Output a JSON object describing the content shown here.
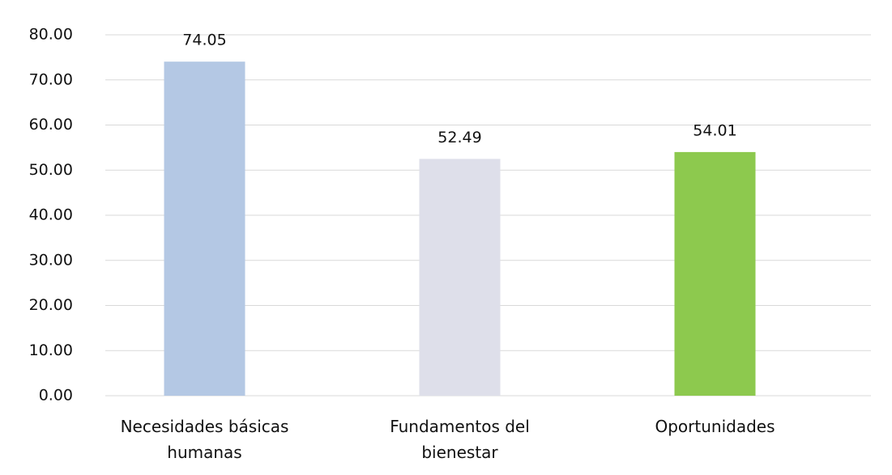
{
  "chart_data": {
    "type": "bar",
    "categories": [
      "Necesidades básicas humanas",
      "Fundamentos del bienestar",
      "Oportunidades"
    ],
    "values": [
      74.05,
      52.49,
      54.01
    ],
    "colors": [
      "#b4c8e4",
      "#dedfea",
      "#8dc94e"
    ],
    "ylim": [
      0,
      80
    ],
    "yticks": [
      {
        "value": 0,
        "label": "0.00"
      },
      {
        "value": 10,
        "label": "10.00"
      },
      {
        "value": 20,
        "label": "20.00"
      },
      {
        "value": 30,
        "label": "30.00"
      },
      {
        "value": 40,
        "label": "40.00"
      },
      {
        "value": 50,
        "label": "50.00"
      },
      {
        "value": 60,
        "label": "60.00"
      },
      {
        "value": 70,
        "label": "70.00"
      },
      {
        "value": 80,
        "label": "80.00"
      }
    ],
    "grid": true
  }
}
